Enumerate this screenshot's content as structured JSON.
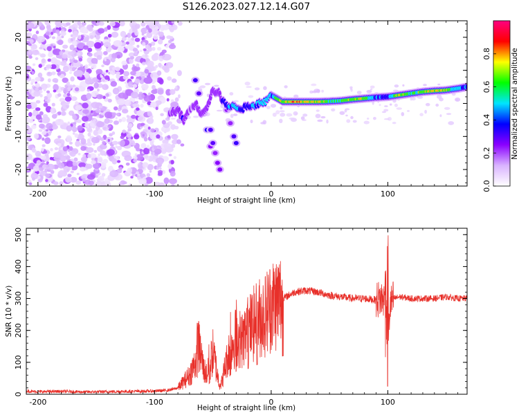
{
  "title": "S126.2023.027.12.14.G07",
  "chart_data": [
    {
      "type": "heatmap",
      "title": "S126.2023.027.12.14.G07",
      "xlabel": "Height of straight line (km)",
      "ylabel": "Frequency (Hz)",
      "xlim": [
        -210,
        168
      ],
      "ylim": [
        -25,
        25
      ],
      "xticks": [
        -200,
        -100,
        0,
        100
      ],
      "yticks": [
        -20,
        -10,
        0,
        10,
        20
      ],
      "colorbar": {
        "label": "Normalized spectral amplitude",
        "range": [
          0.0,
          1.0
        ],
        "ticks": [
          0.0,
          0.2,
          0.4,
          0.6,
          0.8
        ],
        "colormap": [
          "#ffffff",
          "#d9b3ff",
          "#8a00ff",
          "#0000ff",
          "#00e5ff",
          "#00ff00",
          "#ffff00",
          "#ff0000",
          "#ff0080"
        ]
      },
      "noise_region": {
        "x_range": [
          -210,
          -85
        ],
        "freq_range": [
          -25,
          25
        ],
        "amplitude_range": [
          0.0,
          0.2
        ]
      },
      "ridge": {
        "x": [
          -88,
          -80,
          -75,
          -70,
          -65,
          -60,
          -55,
          -50,
          -45,
          -40,
          -35,
          -30,
          -25,
          -20,
          -15,
          -10,
          -5,
          0,
          10,
          20,
          30,
          40,
          50,
          60,
          70,
          80,
          90,
          100,
          110,
          120,
          130,
          140,
          150,
          160,
          168
        ],
        "freq": [
          -3,
          -2,
          -5,
          -2,
          0,
          -3,
          -1,
          4,
          3,
          0,
          -1,
          -1,
          -1.5,
          -1,
          -0.5,
          0,
          0.5,
          2.5,
          0.5,
          0.5,
          0.5,
          0.5,
          0.6,
          0.8,
          1.2,
          1.5,
          1.8,
          2,
          2.5,
          3,
          3.5,
          3.8,
          4,
          4.5,
          5
        ],
        "amplitude": [
          0.2,
          0.3,
          0.35,
          0.2,
          0.3,
          0.25,
          0.25,
          0.3,
          0.3,
          0.4,
          0.5,
          0.55,
          0.45,
          0.45,
          0.5,
          0.6,
          0.65,
          0.5,
          0.85,
          0.9,
          0.88,
          0.82,
          0.7,
          0.65,
          0.8,
          0.8,
          0.5,
          0.45,
          0.8,
          0.7,
          0.75,
          0.82,
          0.8,
          0.55,
          0.5
        ]
      },
      "side_traces": [
        {
          "x": [
            -65,
            -62,
            -58,
            -55,
            -52
          ],
          "freq": [
            7,
            3,
            -3,
            -8,
            -13
          ]
        },
        {
          "x": [
            -52,
            -50,
            -48,
            -46,
            -44
          ],
          "freq": [
            -8,
            -12,
            -15,
            -18,
            -20
          ]
        },
        {
          "x": [
            -38,
            -35,
            -32,
            -30
          ],
          "freq": [
            -2,
            -6,
            -10,
            -12
          ]
        }
      ]
    },
    {
      "type": "line",
      "xlabel": "Height of straight line (km)",
      "ylabel": "SNR (10 * v/v)",
      "xlim": [
        -210,
        168
      ],
      "ylim": [
        0,
        520
      ],
      "xticks": [
        -200,
        -100,
        0,
        100
      ],
      "yticks": [
        0,
        100,
        200,
        300,
        400,
        500
      ],
      "color": "#e8302a",
      "x": [
        -210,
        -200,
        -180,
        -160,
        -140,
        -120,
        -100,
        -90,
        -85,
        -80,
        -75,
        -70,
        -65,
        -62,
        -60,
        -58,
        -55,
        -52,
        -50,
        -48,
        -46,
        -44,
        -42,
        -40,
        -35,
        -30,
        -25,
        -20,
        -15,
        -10,
        -5,
        0,
        5,
        10,
        15,
        20,
        30,
        40,
        50,
        60,
        70,
        80,
        90,
        95,
        98,
        100,
        102,
        105,
        110,
        120,
        130,
        140,
        150,
        160,
        168
      ],
      "y": [
        10,
        8,
        9,
        7,
        8,
        9,
        10,
        12,
        15,
        20,
        40,
        60,
        100,
        150,
        120,
        80,
        60,
        100,
        130,
        100,
        60,
        30,
        40,
        80,
        150,
        180,
        170,
        200,
        220,
        240,
        250,
        280,
        290,
        300,
        310,
        320,
        325,
        320,
        310,
        305,
        300,
        300,
        295,
        300,
        290,
        150,
        280,
        300,
        305,
        300,
        300,
        300,
        305,
        300,
        300
      ],
      "spikes": [
        {
          "x": -63,
          "max": 230
        },
        {
          "x": -53,
          "max": 180
        },
        {
          "x": -35,
          "max": 270
        },
        {
          "x": -30,
          "max": 300
        },
        {
          "x": -20,
          "max": 320
        },
        {
          "x": -12,
          "max": 330
        },
        {
          "x": 10,
          "max": 350
        },
        {
          "x": 98,
          "max": 420
        },
        {
          "x": 100,
          "min": 25,
          "max": 520
        }
      ]
    }
  ]
}
